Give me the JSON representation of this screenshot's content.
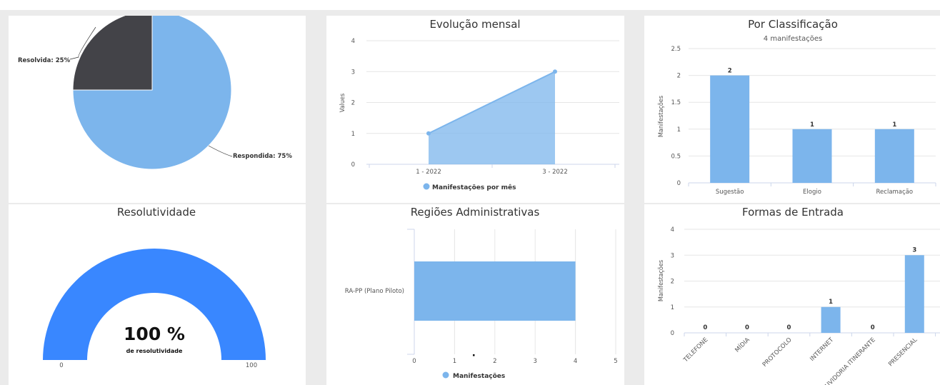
{
  "colors": {
    "blue": "#7cb5ec",
    "dark": "#434348",
    "gauge": "#3987ff"
  },
  "chart_data": [
    {
      "type": "pie",
      "slices": [
        {
          "label": "Resolvida: 25%",
          "value": 25,
          "color": "#434348"
        },
        {
          "label": "Respondida: 75%",
          "value": 75,
          "color": "#7cb5ec"
        }
      ]
    },
    {
      "type": "area",
      "title": "Evolução mensal",
      "ylabel": "Values",
      "categories": [
        "1 - 2022",
        "3 - 2022"
      ],
      "series": [
        {
          "name": "Manifestações por mês",
          "values": [
            1,
            3
          ]
        }
      ],
      "yticks": [
        "0",
        "1",
        "2",
        "3",
        "4"
      ],
      "ylim": [
        0,
        4
      ]
    },
    {
      "type": "bar",
      "title": "Por Classificação",
      "subtitle": "4 manifestações",
      "ylabel": "Manifestações",
      "categories": [
        "Sugestão",
        "Elogio",
        "Reclamação"
      ],
      "values": [
        2,
        1,
        1
      ],
      "datalabels": [
        "2",
        "1",
        "1"
      ],
      "yticks": [
        "0",
        "0.5",
        "1",
        "1.5",
        "2",
        "2.5"
      ],
      "ylim": [
        0,
        2.5
      ]
    },
    {
      "type": "gauge",
      "title": "Resolutividade",
      "value": 100,
      "value_label": "100 %",
      "caption": "de resolutividade",
      "min_label": "0",
      "max_label": "100"
    },
    {
      "type": "bar",
      "orientation": "horizontal",
      "title": "Regiões Administrativas",
      "categories": [
        "RA-PP (Plano Piloto)"
      ],
      "series": [
        {
          "name": "Manifestações",
          "values": [
            4
          ]
        }
      ],
      "xticks": [
        "0",
        "1",
        "2",
        "3",
        "4",
        "5"
      ],
      "xlim": [
        0,
        5
      ]
    },
    {
      "type": "bar",
      "title": "Formas de Entrada",
      "ylabel": "Manifestações",
      "categories": [
        "TELEFONE",
        "MÍDIA",
        "PROTOCOLO",
        "INTERNET",
        "OUVIDORIA ITINERANTE",
        "PRESENCIAL"
      ],
      "values": [
        0,
        0,
        0,
        1,
        0,
        3
      ],
      "datalabels": [
        "0",
        "0",
        "0",
        "1",
        "0",
        "3"
      ],
      "yticks": [
        "0",
        "1",
        "2",
        "3",
        "4"
      ],
      "ylim": [
        0,
        4
      ]
    }
  ]
}
